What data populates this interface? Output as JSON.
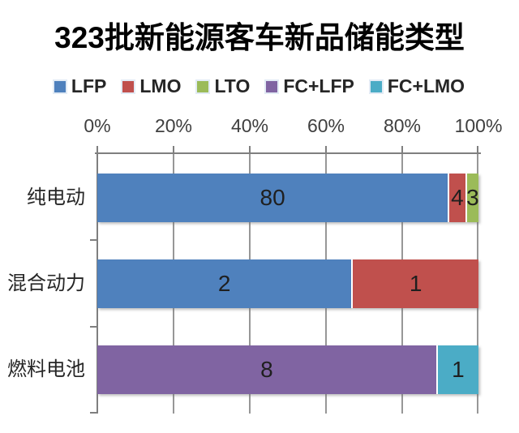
{
  "title": "323批新能源客车新品储能类型",
  "chart_data": {
    "type": "bar",
    "orientation": "horizontal",
    "stacked": true,
    "normalized_to_percent": true,
    "title": "323批新能源客车新品储能类型",
    "x_axis_position": "top",
    "x_ticks": [
      "0%",
      "20%",
      "40%",
      "60%",
      "80%",
      "100%"
    ],
    "xlim": [
      0,
      100
    ],
    "grid": true,
    "legend_position": "top",
    "value_labels_shown": true,
    "categories": [
      "纯电动",
      "混合动力",
      "燃料电池"
    ],
    "series": [
      {
        "name": "LFP",
        "color": "#4F81BD",
        "values": [
          80,
          2,
          0
        ]
      },
      {
        "name": "LMO",
        "color": "#C0504D",
        "values": [
          4,
          1,
          0
        ]
      },
      {
        "name": "LTO",
        "color": "#9BBB59",
        "values": [
          3,
          0,
          0
        ]
      },
      {
        "name": "FC+LFP",
        "color": "#8064A2",
        "values": [
          0,
          0,
          8
        ]
      },
      {
        "name": "FC+LMO",
        "color": "#4BACC6",
        "values": [
          0,
          0,
          1
        ]
      }
    ]
  },
  "colors": {
    "axis": "#7f7f7f",
    "gridline": "#979797",
    "text": "#262626",
    "background": "#ffffff"
  }
}
